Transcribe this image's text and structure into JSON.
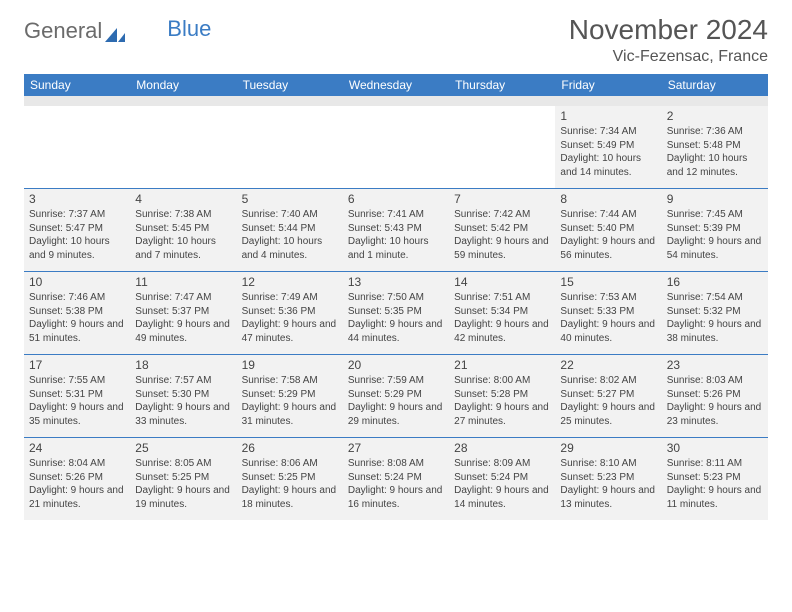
{
  "logo": {
    "text1": "General",
    "text2": "Blue"
  },
  "title": "November 2024",
  "subtitle": "Vic-Fezensac, France",
  "day_names": [
    "Sunday",
    "Monday",
    "Tuesday",
    "Wednesday",
    "Thursday",
    "Friday",
    "Saturday"
  ],
  "colors": {
    "header_bg": "#3b7cc4",
    "cell_bg": "#f2f2f2",
    "border": "#3b7cc4",
    "text": "#444444"
  },
  "weeks": [
    [
      null,
      null,
      null,
      null,
      null,
      {
        "n": "1",
        "sr": "7:34 AM",
        "ss": "5:49 PM",
        "dl": "10 hours and 14 minutes."
      },
      {
        "n": "2",
        "sr": "7:36 AM",
        "ss": "5:48 PM",
        "dl": "10 hours and 12 minutes."
      }
    ],
    [
      {
        "n": "3",
        "sr": "7:37 AM",
        "ss": "5:47 PM",
        "dl": "10 hours and 9 minutes."
      },
      {
        "n": "4",
        "sr": "7:38 AM",
        "ss": "5:45 PM",
        "dl": "10 hours and 7 minutes."
      },
      {
        "n": "5",
        "sr": "7:40 AM",
        "ss": "5:44 PM",
        "dl": "10 hours and 4 minutes."
      },
      {
        "n": "6",
        "sr": "7:41 AM",
        "ss": "5:43 PM",
        "dl": "10 hours and 1 minute."
      },
      {
        "n": "7",
        "sr": "7:42 AM",
        "ss": "5:42 PM",
        "dl": "9 hours and 59 minutes."
      },
      {
        "n": "8",
        "sr": "7:44 AM",
        "ss": "5:40 PM",
        "dl": "9 hours and 56 minutes."
      },
      {
        "n": "9",
        "sr": "7:45 AM",
        "ss": "5:39 PM",
        "dl": "9 hours and 54 minutes."
      }
    ],
    [
      {
        "n": "10",
        "sr": "7:46 AM",
        "ss": "5:38 PM",
        "dl": "9 hours and 51 minutes."
      },
      {
        "n": "11",
        "sr": "7:47 AM",
        "ss": "5:37 PM",
        "dl": "9 hours and 49 minutes."
      },
      {
        "n": "12",
        "sr": "7:49 AM",
        "ss": "5:36 PM",
        "dl": "9 hours and 47 minutes."
      },
      {
        "n": "13",
        "sr": "7:50 AM",
        "ss": "5:35 PM",
        "dl": "9 hours and 44 minutes."
      },
      {
        "n": "14",
        "sr": "7:51 AM",
        "ss": "5:34 PM",
        "dl": "9 hours and 42 minutes."
      },
      {
        "n": "15",
        "sr": "7:53 AM",
        "ss": "5:33 PM",
        "dl": "9 hours and 40 minutes."
      },
      {
        "n": "16",
        "sr": "7:54 AM",
        "ss": "5:32 PM",
        "dl": "9 hours and 38 minutes."
      }
    ],
    [
      {
        "n": "17",
        "sr": "7:55 AM",
        "ss": "5:31 PM",
        "dl": "9 hours and 35 minutes."
      },
      {
        "n": "18",
        "sr": "7:57 AM",
        "ss": "5:30 PM",
        "dl": "9 hours and 33 minutes."
      },
      {
        "n": "19",
        "sr": "7:58 AM",
        "ss": "5:29 PM",
        "dl": "9 hours and 31 minutes."
      },
      {
        "n": "20",
        "sr": "7:59 AM",
        "ss": "5:29 PM",
        "dl": "9 hours and 29 minutes."
      },
      {
        "n": "21",
        "sr": "8:00 AM",
        "ss": "5:28 PM",
        "dl": "9 hours and 27 minutes."
      },
      {
        "n": "22",
        "sr": "8:02 AM",
        "ss": "5:27 PM",
        "dl": "9 hours and 25 minutes."
      },
      {
        "n": "23",
        "sr": "8:03 AM",
        "ss": "5:26 PM",
        "dl": "9 hours and 23 minutes."
      }
    ],
    [
      {
        "n": "24",
        "sr": "8:04 AM",
        "ss": "5:26 PM",
        "dl": "9 hours and 21 minutes."
      },
      {
        "n": "25",
        "sr": "8:05 AM",
        "ss": "5:25 PM",
        "dl": "9 hours and 19 minutes."
      },
      {
        "n": "26",
        "sr": "8:06 AM",
        "ss": "5:25 PM",
        "dl": "9 hours and 18 minutes."
      },
      {
        "n": "27",
        "sr": "8:08 AM",
        "ss": "5:24 PM",
        "dl": "9 hours and 16 minutes."
      },
      {
        "n": "28",
        "sr": "8:09 AM",
        "ss": "5:24 PM",
        "dl": "9 hours and 14 minutes."
      },
      {
        "n": "29",
        "sr": "8:10 AM",
        "ss": "5:23 PM",
        "dl": "9 hours and 13 minutes."
      },
      {
        "n": "30",
        "sr": "8:11 AM",
        "ss": "5:23 PM",
        "dl": "9 hours and 11 minutes."
      }
    ]
  ]
}
